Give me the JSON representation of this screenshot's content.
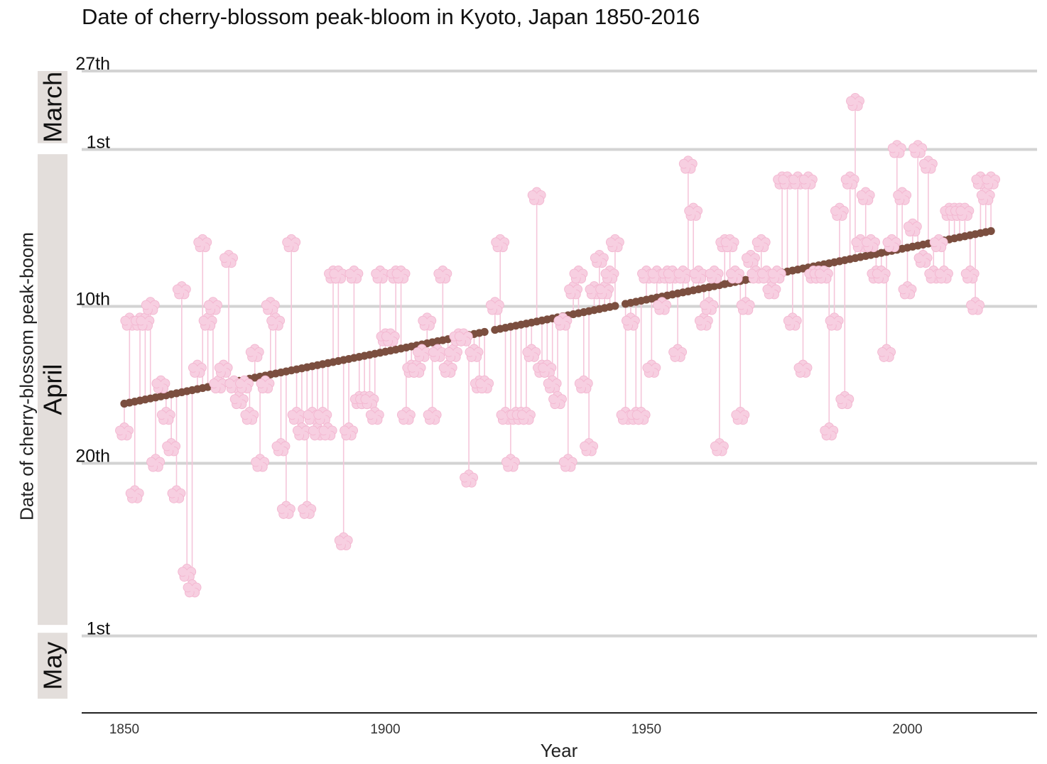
{
  "chart_data": {
    "type": "scatter",
    "title": "Date of cherry-blossom peak-bloom in Kyoto, Japan 1850-2016",
    "xlabel": "Year",
    "ylabel": "Date of cherry-blossom peak-boom",
    "x_ticks": [
      1850,
      1900,
      1950,
      2000
    ],
    "xlim": [
      1841.5,
      2025
    ],
    "y_axis_reversed": true,
    "y_unit": "day of year",
    "ylim": [
      86,
      126
    ],
    "y_ticks": [
      {
        "doy": 86,
        "label": "27th"
      },
      {
        "doy": 91,
        "label": "1st"
      },
      {
        "doy": 101,
        "label": "10th"
      },
      {
        "doy": 111,
        "label": "20th"
      },
      {
        "doy": 122,
        "label": "1st"
      }
    ],
    "month_strips": [
      {
        "label": "March",
        "from_doy": 86,
        "to_doy": 90.6
      },
      {
        "label": "April",
        "from_doy": 91.3,
        "to_doy": 121.3
      },
      {
        "label": "May",
        "from_doy": 121.8,
        "to_doy": 126
      }
    ],
    "colors": {
      "observed_marker": "#f7cfe1",
      "observed_marker_edge": "#f3b6d0",
      "trend_points": "#7b4e3f",
      "segment": "#f5c6da",
      "grid": "#d3d3d3",
      "strip": "#e3dedb"
    },
    "series": [
      {
        "name": "",
        "type": "scatter",
        "x": [
          1850,
          1851,
          1852,
          1853,
          1854,
          1855,
          1856,
          1857,
          1858,
          1859,
          1860,
          1861,
          1862,
          1863,
          1864,
          1865,
          1866,
          1867,
          1868,
          1869,
          1870,
          1871,
          1872,
          1873,
          1874,
          1875,
          1876,
          1877,
          1878,
          1879,
          1880,
          1881,
          1882,
          1883,
          1884,
          1885,
          1886,
          1887,
          1888,
          1889,
          1890,
          1891,
          1892,
          1893,
          1894,
          1895,
          1896,
          1897,
          1898,
          1899,
          1900,
          1901,
          1902,
          1903,
          1904,
          1905,
          1906,
          1907,
          1908,
          1909,
          1910,
          1911,
          1912,
          1913,
          1914,
          1915,
          1916,
          1917,
          1918,
          1919,
          1921,
          1922,
          1923,
          1924,
          1925,
          1926,
          1927,
          1928,
          1929,
          1930,
          1931,
          1932,
          1933,
          1934,
          1935,
          1936,
          1937,
          1938,
          1939,
          1940,
          1941,
          1942,
          1943,
          1944,
          1946,
          1947,
          1948,
          1949,
          1950,
          1951,
          1952,
          1953,
          1954,
          1955,
          1956,
          1957,
          1958,
          1959,
          1960,
          1961,
          1962,
          1963,
          1964,
          1965,
          1966,
          1967,
          1968,
          1969,
          1970,
          1971,
          1972,
          1973,
          1974,
          1975,
          1976,
          1977,
          1978,
          1979,
          1980,
          1981,
          1982,
          1983,
          1984,
          1985,
          1986,
          1987,
          1988,
          1989,
          1990,
          1991,
          1992,
          1993,
          1994,
          1995,
          1996,
          1997,
          1998,
          1999,
          2000,
          2001,
          2002,
          2003,
          2004,
          2005,
          2006,
          2007,
          2008,
          2009,
          2010,
          2011,
          2012,
          2013,
          2014,
          2015,
          2016
        ],
        "y": [
          109,
          102,
          113,
          102,
          102,
          101,
          111,
          106,
          108,
          110,
          113,
          100,
          118,
          119,
          105,
          97,
          102,
          101,
          106,
          105,
          98,
          106,
          107,
          106,
          108,
          104,
          111,
          106,
          101,
          102,
          110,
          114,
          97,
          108,
          109,
          114,
          108,
          109,
          108,
          109,
          99,
          99,
          116,
          109,
          99,
          107,
          107,
          107,
          108,
          99,
          103,
          103,
          99,
          99,
          108,
          105,
          105,
          104,
          102,
          108,
          104,
          99,
          105,
          104,
          103,
          103,
          112,
          104,
          106,
          106,
          101,
          97,
          108,
          111,
          108,
          108,
          108,
          104,
          94,
          105,
          105,
          106,
          107,
          102,
          111,
          100,
          99,
          106,
          110,
          100,
          98,
          100,
          99,
          97,
          108,
          102,
          108,
          108,
          99,
          105,
          99,
          101,
          99,
          99,
          104,
          99,
          92,
          95,
          99,
          102,
          101,
          99,
          110,
          97,
          97,
          99,
          108,
          101,
          98,
          99,
          97,
          99,
          100,
          99,
          93,
          93,
          102,
          93,
          105,
          93,
          99,
          99,
          99,
          109,
          102,
          95,
          107,
          93,
          88,
          97,
          94,
          97,
          99,
          99,
          104,
          97,
          91,
          94,
          100,
          96,
          91,
          98,
          92,
          99,
          97,
          99,
          95,
          95,
          95,
          95,
          99,
          101,
          93,
          94,
          93
        ],
        "marker": "cherry-blossom-flower"
      },
      {
        "name": "",
        "type": "line",
        "from": {
          "year": 1850,
          "doy": 107.2
        },
        "to": {
          "year": 2016,
          "doy": 96.2
        },
        "marker": "dot",
        "missing_years": [
          1920,
          1945
        ]
      }
    ],
    "grid": "horizontal",
    "legend": "none"
  }
}
